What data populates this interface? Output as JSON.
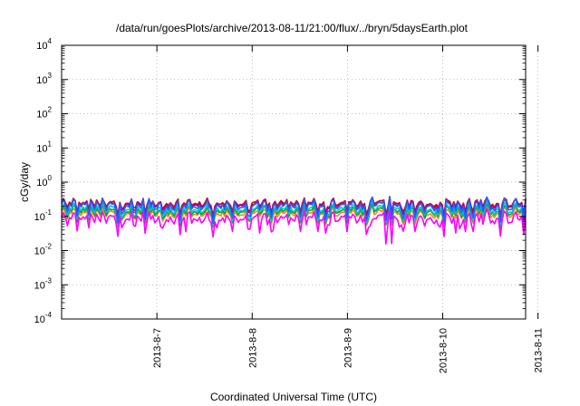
{
  "chart_data": {
    "type": "line",
    "title": "/data/run/goesPlots/archive/2013-08-11/21:00/flux/../bryn/5daysEarth.plot",
    "xlabel": "Coordinated Universal Time (UTC)",
    "ylabel": "cGy/day",
    "y_scale": "log",
    "ylim_exponents": [
      -4,
      4
    ],
    "y_tick_exponents": [
      -4,
      -3,
      -2,
      -1,
      0,
      1,
      2,
      3,
      4
    ],
    "y_tick_base": "10",
    "x_tick_labels": [
      "2013-8-7",
      "2013-8-8",
      "2013-8-9",
      "2013-8-10",
      "2013-8-11"
    ],
    "xlim_days": [
      -1.0,
      3.87
    ],
    "x_tick_days": [
      0,
      1,
      2,
      3,
      4
    ],
    "grid": true,
    "legend": "none",
    "series_colors": [
      "#dd0000",
      "#a000a0",
      "#ff8800",
      "#00a040",
      "#00c8c8",
      "#2060ff",
      "#ff00ff"
    ],
    "series_levels": [
      0.24,
      0.22,
      0.12,
      0.14,
      0.16,
      0.2,
      0.085
    ]
  }
}
